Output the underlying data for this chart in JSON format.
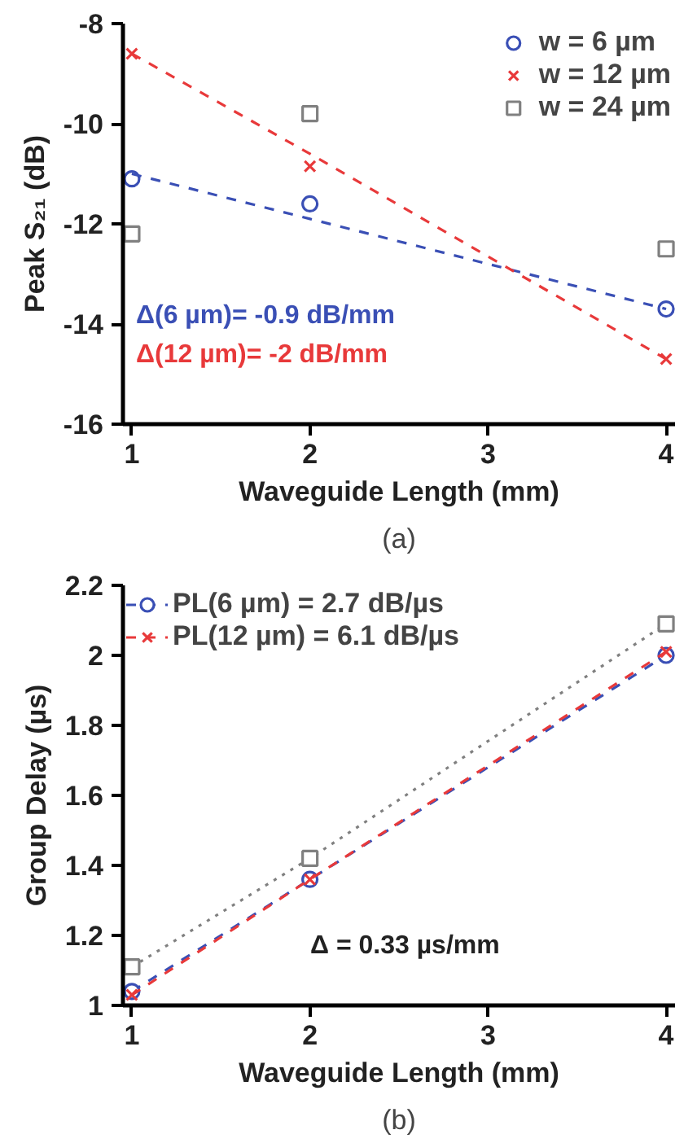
{
  "chart_data": [
    {
      "type": "scatter",
      "title": "(a)",
      "xlabel": "Waveguide Length (mm)",
      "ylabel": "Peak S₂₁ (dB)",
      "x": [
        1,
        2,
        4
      ],
      "xlim": [
        0.95,
        4.05
      ],
      "xticks": [
        1,
        2,
        3,
        4
      ],
      "ylim": [
        -16,
        -8
      ],
      "yticks": [
        -16,
        -14,
        -12,
        -10,
        -8
      ],
      "grid": false,
      "legend": "top right",
      "annotations": [
        "Δ(6 µm)= -0.9 dB/mm",
        "Δ(12 µm)= -2 dB/mm"
      ],
      "series": [
        {
          "name": "w = 6 µm",
          "color": "#3a4fb5",
          "values": [
            -11.1,
            -11.6,
            -13.7
          ],
          "marker": "circle"
        },
        {
          "name": "w = 12 µm",
          "color": "#e8393a",
          "values": [
            -8.6,
            -10.85,
            -14.7
          ],
          "marker": "cross"
        },
        {
          "name": "w = 24 µm",
          "color": "#808080",
          "values": [
            -12.2,
            -9.8,
            -12.5
          ],
          "marker": "square"
        },
        {
          "type": "line",
          "color": "#3a4fb5",
          "values": [
            -11.0,
            -11.9,
            -13.7
          ],
          "line_style": "dashed",
          "marker": "none"
        },
        {
          "type": "line",
          "color": "#e8393a",
          "values": [
            -8.6,
            -10.6,
            -14.7
          ],
          "line_style": "dashed",
          "marker": "none"
        }
      ]
    },
    {
      "type": "line",
      "title": "(b)",
      "xlabel": "Waveguide Length (mm)",
      "ylabel": "Group Delay (µs)",
      "x": [
        1,
        2,
        4
      ],
      "xlim": [
        0.95,
        4.05
      ],
      "xticks": [
        1,
        2,
        3,
        4
      ],
      "ylim": [
        1,
        2.2
      ],
      "yticks": [
        1,
        1.2,
        1.4,
        1.6,
        1.8,
        2,
        2.2
      ],
      "grid": false,
      "legend": "top left",
      "line_style": "dashed",
      "annotations": [
        "Δ = 0.33 µs/mm"
      ],
      "series": [
        {
          "color": "#808080",
          "values": [
            1.11,
            1.42,
            2.09
          ],
          "marker": "square",
          "line_style": "dotted"
        },
        {
          "name": "PL(6 µm) = 2.7 dB/µs",
          "color": "#3a4fb5",
          "values": [
            1.04,
            1.36,
            2.0
          ],
          "marker": "circle"
        },
        {
          "name": "PL(12 µm) = 6.1 dB/µs",
          "color": "#e8393a",
          "values": [
            1.03,
            1.36,
            2.01
          ],
          "marker": "cross"
        }
      ]
    }
  ]
}
